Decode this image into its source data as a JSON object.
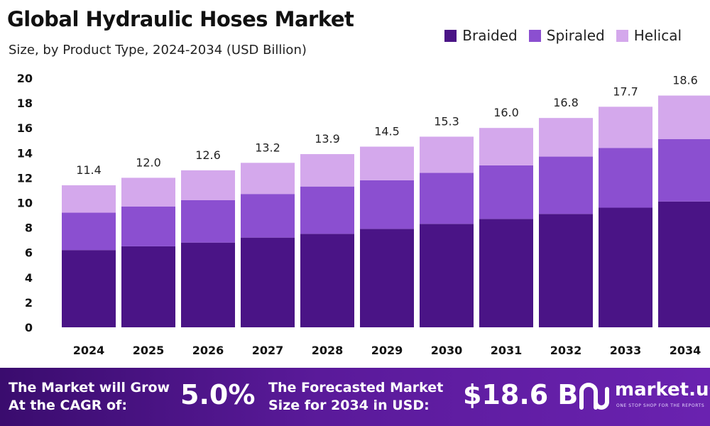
{
  "colors": {
    "braided": "#4a1486",
    "spiraled": "#8b4fd0",
    "helical": "#d4a8ec",
    "footer_start": "#3a0c6e",
    "footer_end": "#6a22b0"
  },
  "chart_data": {
    "type": "bar",
    "stacked": true,
    "title": "Global Hydraulic Hoses Market",
    "subtitle": "Size, by Product Type, 2024-2034 (USD Billion)",
    "categories": [
      "2024",
      "2025",
      "2026",
      "2027",
      "2028",
      "2029",
      "2030",
      "2031",
      "2032",
      "2033",
      "2034"
    ],
    "series": [
      {
        "name": "Braided",
        "values": [
          6.2,
          6.5,
          6.8,
          7.2,
          7.5,
          7.9,
          8.3,
          8.7,
          9.1,
          9.6,
          10.1
        ]
      },
      {
        "name": "Spiraled",
        "values": [
          3.0,
          3.2,
          3.4,
          3.5,
          3.8,
          3.9,
          4.1,
          4.3,
          4.6,
          4.8,
          5.0
        ]
      },
      {
        "name": "Helical",
        "values": [
          2.2,
          2.3,
          2.4,
          2.5,
          2.6,
          2.7,
          2.9,
          3.0,
          3.1,
          3.3,
          3.5
        ]
      }
    ],
    "totals": [
      "11.4",
      "12.0",
      "12.6",
      "13.2",
      "13.9",
      "14.5",
      "15.3",
      "16.0",
      "16.8",
      "17.7",
      "18.6"
    ],
    "ylim": [
      0,
      20
    ],
    "yticks": [
      0,
      2,
      4,
      6,
      8,
      10,
      12,
      14,
      16,
      18,
      20
    ],
    "grid": false,
    "legend_position": "top-right"
  },
  "footer": {
    "cagr_label_line1": "The Market will Grow",
    "cagr_label_line2": "At the CAGR of:",
    "cagr_value": "5.0%",
    "forecast_label_line1": "The Forecasted Market",
    "forecast_label_line2": "Size for 2034 in USD:",
    "forecast_value": "$18.6 B",
    "brand_name": "market.us",
    "brand_tagline": "ONE STOP SHOP FOR THE REPORTS"
  }
}
